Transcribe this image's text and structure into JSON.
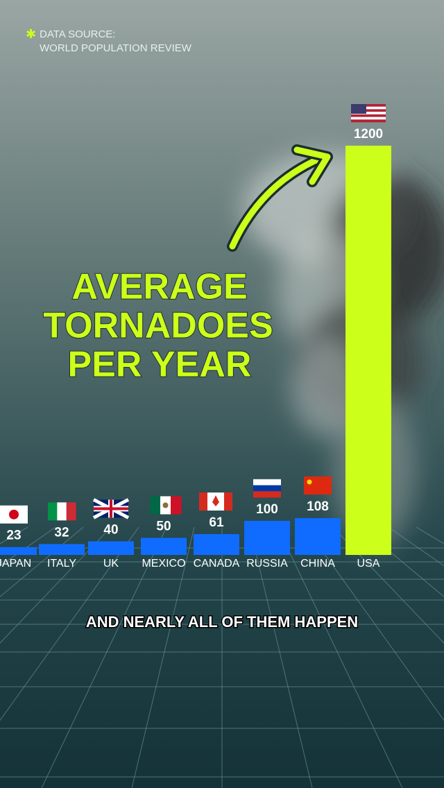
{
  "chart_data": {
    "type": "bar",
    "source_label": "DATA SOURCE:",
    "source": "WORLD POPULATION REVIEW",
    "title_lines": [
      "AVERAGE",
      "TORNADOES",
      "PER YEAR"
    ],
    "caption": "AND NEARLY ALL OF THEM HAPPEN",
    "categories": [
      "JAPAN",
      "ITALY",
      "UK",
      "MEXICO",
      "CANADA",
      "RUSSIA",
      "CHINA",
      "USA"
    ],
    "values": [
      23,
      32,
      40,
      50,
      61,
      100,
      108,
      1200
    ],
    "colors": [
      "#0f6cff",
      "#0f6cff",
      "#0f6cff",
      "#0f6cff",
      "#0f6cff",
      "#0f6cff",
      "#0f6cff",
      "#ccff1a"
    ],
    "ylim": [
      0,
      1200
    ]
  }
}
